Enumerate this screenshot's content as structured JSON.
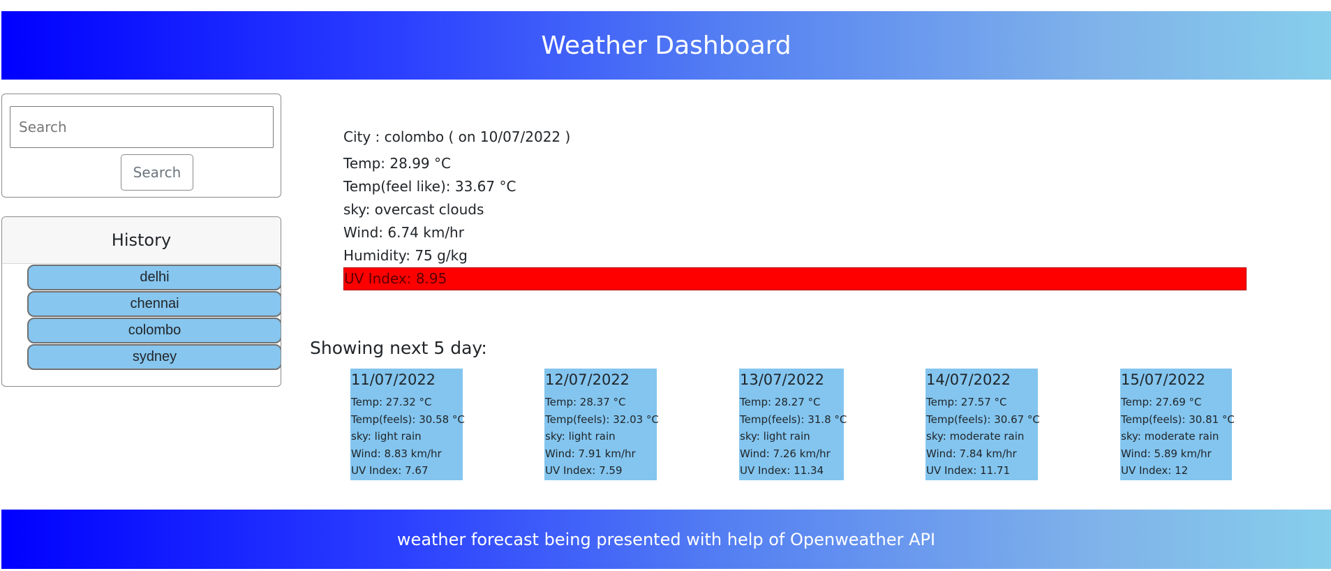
{
  "header": {
    "title": "Weather Dashboard"
  },
  "search": {
    "placeholder": "Search",
    "value": "",
    "button_label": "Search"
  },
  "history": {
    "title": "History",
    "items": [
      "delhi",
      "chennai",
      "colombo",
      "sydney"
    ]
  },
  "current": {
    "city_line": "City : colombo ( on 10/07/2022 )",
    "temp": "Temp: 28.99 °C",
    "feels_like": "Temp(feel like): 33.67 °C",
    "sky": "sky: overcast clouds",
    "wind": "Wind: 6.74 km/hr",
    "humidity": "Humidity: 75 g/kg",
    "uv": "UV Index: 8.95",
    "uv_color": "#ff0000"
  },
  "forecast": {
    "heading": "Showing next 5 day:",
    "days": [
      {
        "date": "11/07/2022",
        "temp": "Temp: 27.32 °C",
        "feels": "Temp(feels): 30.58 °C",
        "sky": "sky: light rain",
        "wind": "Wind: 8.83 km/hr",
        "uv": "UV Index: 7.67"
      },
      {
        "date": "12/07/2022",
        "temp": "Temp: 28.37 °C",
        "feels": "Temp(feels): 32.03 °C",
        "sky": "sky: light rain",
        "wind": "Wind: 7.91 km/hr",
        "uv": "UV Index: 7.59"
      },
      {
        "date": "13/07/2022",
        "temp": "Temp: 28.27 °C",
        "feels": "Temp(feels): 31.8 °C",
        "sky": "sky: light rain",
        "wind": "Wind: 7.26 km/hr",
        "uv": "UV Index: 11.34"
      },
      {
        "date": "14/07/2022",
        "temp": "Temp: 27.57 °C",
        "feels": "Temp(feels): 30.67 °C",
        "sky": "sky: moderate rain",
        "wind": "Wind: 7.84 km/hr",
        "uv": "UV Index: 11.71"
      },
      {
        "date": "15/07/2022",
        "temp": "Temp: 27.69 °C",
        "feels": "Temp(feels): 30.81 °C",
        "sky": "sky: moderate rain",
        "wind": "Wind: 5.89 km/hr",
        "uv": "UV Index: 12"
      }
    ]
  },
  "footer": {
    "text": "weather forecast being presented with help of Openweather API"
  },
  "colors": {
    "gradient_start": "#0000ff",
    "gradient_end": "#87ceeb",
    "history_item_bg": "#87c6ef",
    "forecast_card_bg": "#83c5ef"
  }
}
